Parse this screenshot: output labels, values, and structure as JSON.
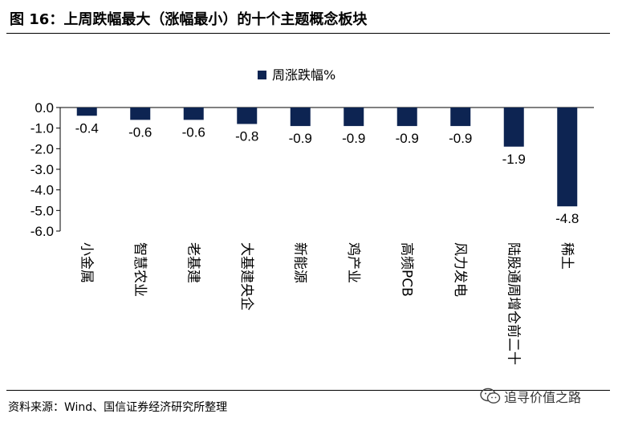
{
  "figure": {
    "title": "图 16：上周跌幅最大（涨幅最小）的十个主题概念板块",
    "source": "资料来源：Wind、国信证券经济研究所整理",
    "watermark": "追寻价值之路",
    "watermark_icon": "wechat-icon"
  },
  "chart_data": {
    "type": "bar",
    "categories": [
      "小金属",
      "智慧农业",
      "老基建",
      "大基建央企",
      "新能源",
      "鸡产业",
      "高频PCB",
      "风力发电",
      "陆股通周增仓前二十",
      "稀土"
    ],
    "series": [
      {
        "name": "周涨跌幅%",
        "values": [
          -0.4,
          -0.6,
          -0.6,
          -0.8,
          -0.9,
          -0.9,
          -0.9,
          -0.9,
          -1.9,
          -4.8
        ]
      }
    ],
    "data_labels": [
      "-0.4",
      "-0.6",
      "-0.6",
      "-0.8",
      "-0.9",
      "-0.9",
      "-0.9",
      "-0.9",
      "-1.9",
      "-4.8"
    ],
    "y_ticks": [
      "0.0",
      "-1.0",
      "-2.0",
      "-3.0",
      "-4.0",
      "-5.0",
      "-6.0"
    ],
    "ylim": [
      -6,
      0
    ],
    "legend_position": "top-center",
    "grid": false,
    "bar_color": "#0d2452"
  }
}
